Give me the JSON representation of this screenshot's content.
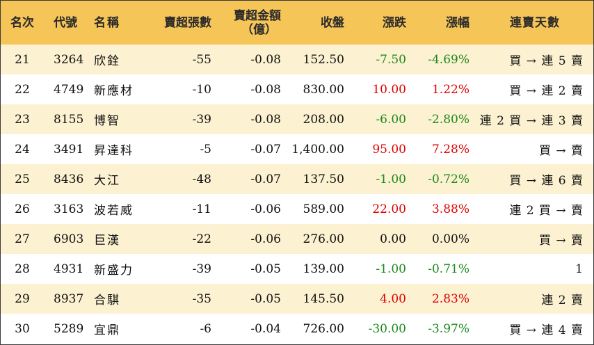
{
  "header": {
    "rank": "名次",
    "code": "代號",
    "name": "名稱",
    "sell_lots": "賣超張數",
    "sell_amount_line1": "賣超金額",
    "sell_amount_line2": "（億）",
    "close": "收盤",
    "change": "漲跌",
    "change_pct": "漲幅",
    "streak": "連賣天數"
  },
  "colors": {
    "header_bg": "#f6c558",
    "stripe_bg": "#fcf1d1",
    "up": "#e00000",
    "down": "#1a8a1a"
  },
  "rows": [
    {
      "rank": "21",
      "code": "3264",
      "name": "欣銓",
      "sell_lots": "-55",
      "sell_amount": "-0.08",
      "close": "152.50",
      "change": "-7.50",
      "change_pct": "-4.69%",
      "direction": "down",
      "streak": "買 → 連 5 賣"
    },
    {
      "rank": "22",
      "code": "4749",
      "name": "新應材",
      "sell_lots": "-10",
      "sell_amount": "-0.08",
      "close": "830.00",
      "change": "10.00",
      "change_pct": "1.22%",
      "direction": "up",
      "streak": "買 → 連 2 賣"
    },
    {
      "rank": "23",
      "code": "8155",
      "name": "博智",
      "sell_lots": "-39",
      "sell_amount": "-0.08",
      "close": "208.00",
      "change": "-6.00",
      "change_pct": "-2.80%",
      "direction": "down",
      "streak": "連 2 買 → 連 3 賣"
    },
    {
      "rank": "24",
      "code": "3491",
      "name": "昇達科",
      "sell_lots": "-5",
      "sell_amount": "-0.07",
      "close": "1,400.00",
      "change": "95.00",
      "change_pct": "7.28%",
      "direction": "up",
      "streak": "買 → 賣"
    },
    {
      "rank": "25",
      "code": "8436",
      "name": "大江",
      "sell_lots": "-48",
      "sell_amount": "-0.07",
      "close": "137.50",
      "change": "-1.00",
      "change_pct": "-0.72%",
      "direction": "down",
      "streak": "買 → 連 6 賣"
    },
    {
      "rank": "26",
      "code": "3163",
      "name": "波若威",
      "sell_lots": "-11",
      "sell_amount": "-0.06",
      "close": "589.00",
      "change": "22.00",
      "change_pct": "3.88%",
      "direction": "up",
      "streak": "連 2 買 → 賣"
    },
    {
      "rank": "27",
      "code": "6903",
      "name": "巨漢",
      "sell_lots": "-22",
      "sell_amount": "-0.06",
      "close": "276.00",
      "change": "0.00",
      "change_pct": "0.00%",
      "direction": "flat",
      "streak": "買 → 賣"
    },
    {
      "rank": "28",
      "code": "4931",
      "name": "新盛力",
      "sell_lots": "-39",
      "sell_amount": "-0.05",
      "close": "139.00",
      "change": "-1.00",
      "change_pct": "-0.71%",
      "direction": "down",
      "streak": "1"
    },
    {
      "rank": "29",
      "code": "8937",
      "name": "合騏",
      "sell_lots": "-35",
      "sell_amount": "-0.05",
      "close": "145.50",
      "change": "4.00",
      "change_pct": "2.83%",
      "direction": "up",
      "streak": "連 2 賣"
    },
    {
      "rank": "30",
      "code": "5289",
      "name": "宜鼎",
      "sell_lots": "-6",
      "sell_amount": "-0.04",
      "close": "726.00",
      "change": "-30.00",
      "change_pct": "-3.97%",
      "direction": "down",
      "streak": "買 → 連 4 賣"
    }
  ]
}
